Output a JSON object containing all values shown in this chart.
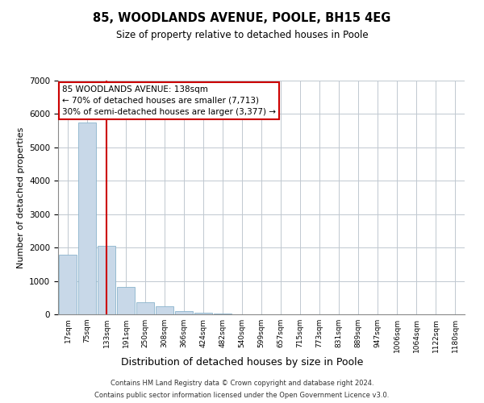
{
  "title_line1": "85, WOODLANDS AVENUE, POOLE, BH15 4EG",
  "title_line2": "Size of property relative to detached houses in Poole",
  "xlabel": "Distribution of detached houses by size in Poole",
  "ylabel": "Number of detached properties",
  "bar_color": "#c8d8e8",
  "bar_edge_color": "#8ab4cc",
  "marker_line_color": "#cc0000",
  "annotation_box_color": "#cc0000",
  "grid_color": "#c0c8d0",
  "background_color": "#ffffff",
  "categories": [
    "17sqm",
    "75sqm",
    "133sqm",
    "191sqm",
    "250sqm",
    "308sqm",
    "366sqm",
    "424sqm",
    "482sqm",
    "540sqm",
    "599sqm",
    "657sqm",
    "715sqm",
    "773sqm",
    "831sqm",
    "889sqm",
    "947sqm",
    "1006sqm",
    "1064sqm",
    "1122sqm",
    "1180sqm"
  ],
  "values": [
    1780,
    5750,
    2060,
    820,
    370,
    230,
    100,
    50,
    25,
    10,
    5,
    2,
    1,
    0,
    0,
    0,
    0,
    0,
    0,
    0,
    0
  ],
  "ylim": [
    0,
    7000
  ],
  "yticks": [
    0,
    1000,
    2000,
    3000,
    4000,
    5000,
    6000,
    7000
  ],
  "marker_index": 2,
  "annotation_text_line1": "85 WOODLANDS AVENUE: 138sqm",
  "annotation_text_line2": "← 70% of detached houses are smaller (7,713)",
  "annotation_text_line3": "30% of semi-detached houses are larger (3,377) →",
  "footer_line1": "Contains HM Land Registry data © Crown copyright and database right 2024.",
  "footer_line2": "Contains public sector information licensed under the Open Government Licence v3.0."
}
